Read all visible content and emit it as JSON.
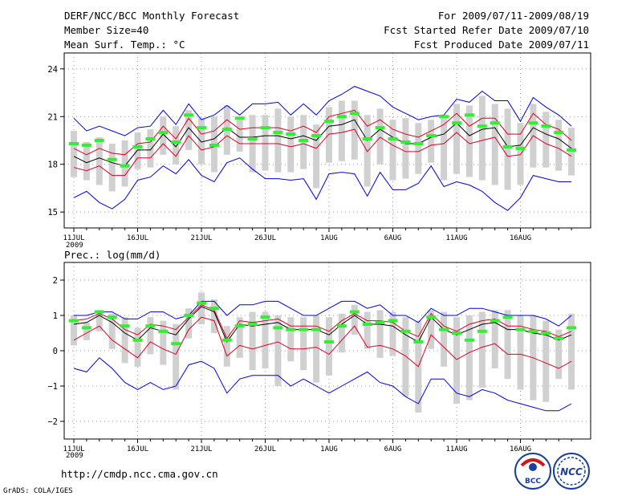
{
  "header": {
    "title": "DERF/NCC/BCC Monthly Forecast",
    "member": "Member Size=40",
    "variable": "Mean Surf. Temp.: °C",
    "period": "For 2009/07/11-2009/08/19",
    "started": "Fcst Started Refer Date 2009/07/10",
    "produced": "Fcst Produced Date 2009/07/11"
  },
  "footer": {
    "url": "http://cmdp.ncc.cma.gov.cn",
    "grads": "GrADS: COLA/IGES",
    "logo_bcc": "BCC",
    "logo_ncc": "NCC"
  },
  "colors": {
    "maxmin": "#0000dd",
    "spread": "#dd0022",
    "ensmean": "#000000",
    "obs": "#33ee33",
    "box": "#d0d0d0",
    "grid": "#999999"
  },
  "x_ticks": [
    "11JUL",
    "16JUL",
    "21JUL",
    "26JUL",
    "1AUG",
    "6AUG",
    "11AUG",
    "16AUG"
  ],
  "x_year": "2009",
  "chart_data": [
    {
      "type": "line",
      "title": "Mean Surf. Temp.: °C",
      "ylabel": "Mean Surf. Temp. (°C)",
      "ylim": [
        14,
        25
      ],
      "yticks": [
        "15",
        "18",
        "21",
        "24"
      ],
      "days": 40,
      "series": [
        {
          "name": "max",
          "values": [
            20.9,
            20.1,
            20.4,
            20.1,
            19.8,
            20.3,
            20.4,
            21.4,
            20.5,
            21.8,
            20.8,
            21.1,
            21.7,
            21.1,
            21.8,
            21.8,
            21.9,
            21.1,
            21.8,
            21.1,
            22.0,
            22.4,
            22.9,
            22.6,
            22.3,
            21.6,
            21.2,
            20.8,
            21.0,
            21.1,
            22.1,
            21.9,
            22.6,
            22.0,
            22.0,
            20.7,
            22.2,
            21.6,
            21.1,
            20.4
          ]
        },
        {
          "name": "spread_upper",
          "values": [
            19.0,
            18.6,
            19.0,
            18.7,
            18.6,
            19.3,
            19.4,
            20.4,
            19.6,
            20.9,
            19.9,
            20.1,
            20.8,
            20.2,
            20.3,
            20.3,
            20.3,
            20.1,
            20.4,
            20.0,
            21.0,
            21.2,
            21.4,
            20.4,
            20.8,
            20.2,
            19.9,
            19.7,
            20.1,
            20.5,
            21.2,
            20.4,
            20.9,
            20.9,
            19.9,
            19.9,
            21.2,
            20.5,
            20.2,
            19.5
          ]
        },
        {
          "name": "ens_mean",
          "values": [
            18.5,
            18.1,
            18.4,
            18.1,
            17.9,
            18.9,
            18.9,
            19.9,
            19.1,
            20.3,
            19.4,
            19.6,
            20.3,
            19.7,
            19.7,
            19.8,
            19.8,
            19.6,
            19.8,
            19.5,
            20.4,
            20.5,
            20.8,
            19.5,
            20.2,
            19.7,
            19.3,
            19.3,
            19.7,
            19.9,
            20.6,
            19.8,
            20.2,
            20.3,
            19.1,
            19.2,
            20.3,
            19.9,
            19.6,
            19.0
          ]
        },
        {
          "name": "spread_lower",
          "values": [
            17.8,
            17.6,
            17.9,
            17.3,
            17.3,
            18.4,
            18.4,
            19.3,
            18.5,
            19.8,
            18.9,
            19.1,
            19.8,
            19.3,
            19.3,
            19.3,
            19.3,
            19.1,
            19.3,
            19.0,
            19.9,
            20.0,
            20.2,
            18.8,
            19.7,
            19.2,
            18.8,
            18.8,
            19.2,
            19.3,
            20.0,
            19.3,
            19.5,
            19.7,
            18.5,
            18.6,
            19.8,
            19.3,
            19.0,
            18.5
          ]
        },
        {
          "name": "min",
          "values": [
            15.9,
            16.3,
            15.6,
            15.2,
            15.8,
            17.0,
            17.2,
            17.9,
            17.4,
            18.3,
            17.3,
            16.9,
            18.1,
            18.4,
            17.7,
            17.1,
            17.1,
            17.0,
            17.1,
            15.8,
            17.4,
            17.5,
            17.4,
            16.0,
            17.5,
            16.4,
            16.4,
            16.8,
            17.9,
            16.6,
            16.9,
            16.7,
            16.3,
            15.6,
            15.1,
            15.9,
            17.3,
            17.1,
            16.9,
            16.9
          ]
        },
        {
          "name": "obs",
          "values": [
            19.3,
            19.2,
            19.5,
            18.3,
            17.9,
            19.1,
            19.6,
            20.0,
            19.4,
            21.1,
            20.3,
            19.2,
            20.2,
            20.9,
            19.6,
            20.3,
            20.0,
            19.9,
            19.5,
            19.8,
            20.7,
            21.0,
            21.2,
            19.6,
            20.3,
            19.6,
            19.4,
            19.3,
            19.8,
            21.0,
            20.6,
            21.1,
            20.4,
            20.6,
            19.1,
            19.0,
            20.6,
            20.4,
            20.0,
            18.9
          ]
        }
      ],
      "box_upper": [
        20.1,
        19.4,
        19.7,
        19.3,
        19.5,
        20.0,
        20.2,
        21.0,
        20.4,
        21.4,
        20.9,
        21.0,
        21.7,
        21.0,
        21.1,
        21.1,
        21.5,
        21.0,
        21.1,
        20.5,
        21.6,
        22.0,
        22.0,
        21.1,
        21.5,
        20.8,
        20.9,
        20.6,
        20.8,
        21.1,
        21.8,
        21.7,
        22.3,
        21.8,
        21.5,
        20.6,
        21.8,
        21.3,
        20.8,
        20.3
      ],
      "box_lower": [
        17.2,
        17.0,
        16.7,
        16.3,
        16.6,
        17.7,
        17.8,
        18.6,
        18.0,
        18.9,
        18.0,
        17.5,
        18.6,
        18.8,
        17.5,
        17.6,
        17.5,
        17.5,
        17.7,
        16.5,
        18.1,
        18.2,
        18.3,
        16.6,
        18.0,
        17.0,
        17.1,
        17.4,
        18.1,
        17.0,
        17.4,
        17.2,
        17.0,
        16.7,
        16.4,
        16.7,
        17.8,
        17.8,
        17.6,
        17.3
      ]
    },
    {
      "type": "line",
      "title": "Prec.: log(mm/d)",
      "ylabel": "log(mm/d)",
      "ylim": [
        -2.5,
        2.5
      ],
      "yticks": [
        "−2",
        "−1",
        "0",
        "1",
        "2"
      ],
      "days": 40,
      "series": [
        {
          "name": "max",
          "values": [
            1.0,
            1.0,
            1.1,
            1.1,
            0.9,
            0.9,
            1.1,
            1.1,
            0.9,
            1.0,
            1.4,
            1.4,
            1.0,
            1.3,
            1.3,
            1.4,
            1.4,
            1.2,
            1.0,
            1.0,
            1.2,
            1.4,
            1.4,
            1.2,
            1.3,
            1.0,
            1.0,
            0.8,
            1.2,
            1.0,
            1.0,
            1.2,
            1.2,
            1.1,
            1.0,
            1.0,
            1.0,
            0.9,
            0.7,
            1.0
          ]
        },
        {
          "name": "spread_upper",
          "values": [
            0.85,
            0.9,
            1.05,
            0.9,
            0.6,
            0.45,
            0.75,
            0.7,
            0.6,
            0.95,
            1.3,
            1.15,
            0.35,
            0.85,
            0.8,
            0.85,
            0.9,
            0.7,
            0.7,
            0.7,
            0.55,
            0.85,
            1.05,
            0.85,
            0.85,
            0.8,
            0.55,
            0.4,
            1.05,
            0.7,
            0.55,
            0.75,
            0.85,
            0.9,
            0.7,
            0.7,
            0.6,
            0.55,
            0.4,
            0.55
          ]
        },
        {
          "name": "ens_mean",
          "values": [
            0.75,
            0.8,
            1.0,
            0.8,
            0.5,
            0.3,
            0.65,
            0.55,
            0.45,
            0.9,
            1.25,
            1.1,
            0.25,
            0.75,
            0.7,
            0.75,
            0.8,
            0.6,
            0.6,
            0.6,
            0.45,
            0.75,
            1.0,
            0.75,
            0.75,
            0.7,
            0.45,
            0.25,
            0.95,
            0.6,
            0.45,
            0.6,
            0.75,
            0.8,
            0.6,
            0.6,
            0.5,
            0.45,
            0.3,
            0.45
          ]
        },
        {
          "name": "spread_lower",
          "values": [
            0.3,
            0.5,
            0.7,
            0.3,
            0.05,
            -0.2,
            0.25,
            0.05,
            -0.1,
            0.6,
            0.95,
            0.85,
            -0.15,
            0.15,
            0.05,
            0.15,
            0.25,
            0.05,
            0.05,
            0.1,
            -0.1,
            0.3,
            0.7,
            0.1,
            0.15,
            0.05,
            -0.15,
            -0.45,
            0.45,
            0.1,
            -0.25,
            -0.05,
            0.1,
            0.2,
            -0.1,
            -0.1,
            -0.2,
            -0.35,
            -0.5,
            -0.3
          ]
        },
        {
          "name": "min",
          "values": [
            -0.5,
            -0.6,
            -0.2,
            -0.5,
            -0.9,
            -1.1,
            -0.9,
            -1.1,
            -1.0,
            -0.4,
            -0.3,
            -0.5,
            -1.2,
            -0.8,
            -0.7,
            -0.7,
            -0.7,
            -1.0,
            -0.8,
            -1.0,
            -1.2,
            -1.0,
            -0.8,
            -0.6,
            -0.9,
            -1.0,
            -1.3,
            -1.5,
            -0.8,
            -0.8,
            -1.2,
            -1.3,
            -1.1,
            -1.2,
            -1.4,
            -1.5,
            -1.6,
            -1.7,
            -1.7,
            -1.5
          ]
        },
        {
          "name": "obs",
          "values": [
            0.85,
            0.65,
            1.1,
            0.95,
            0.7,
            0.3,
            0.7,
            0.55,
            0.2,
            1.0,
            1.35,
            1.2,
            0.3,
            0.7,
            0.75,
            0.95,
            0.65,
            0.6,
            0.6,
            0.6,
            0.25,
            0.7,
            1.1,
            0.75,
            0.8,
            0.85,
            0.55,
            0.25,
            0.95,
            0.6,
            0.5,
            0.3,
            0.55,
            0.85,
            0.95,
            0.6,
            0.55,
            0.5,
            0.35,
            0.65
          ]
        }
      ],
      "box_upper": [
        1.0,
        0.8,
        1.15,
        1.05,
        0.95,
        0.65,
        0.95,
        0.85,
        0.75,
        1.2,
        1.65,
        1.45,
        0.7,
        0.95,
        1.1,
        1.1,
        1.0,
        0.95,
        0.95,
        1.0,
        0.95,
        1.05,
        1.3,
        1.1,
        1.15,
        1.1,
        0.95,
        0.85,
        1.15,
        1.1,
        0.95,
        1.0,
        1.1,
        1.15,
        1.15,
        1.0,
        1.0,
        0.85,
        0.6,
        1.05
      ],
      "box_lower": [
        0.15,
        0.3,
        0.55,
        0.05,
        -0.35,
        -0.45,
        -0.1,
        -0.4,
        -1.1,
        0.35,
        0.75,
        0.5,
        -0.45,
        -0.2,
        -0.55,
        -0.5,
        -1.0,
        -0.3,
        -0.55,
        -0.9,
        -0.7,
        -0.05,
        0.45,
        0.05,
        -0.2,
        -0.15,
        -1.3,
        -1.75,
        0.05,
        -0.45,
        -1.5,
        -1.4,
        -1.05,
        -0.5,
        -0.8,
        -1.1,
        -1.4,
        -1.45,
        -0.8,
        -1.1
      ]
    }
  ]
}
